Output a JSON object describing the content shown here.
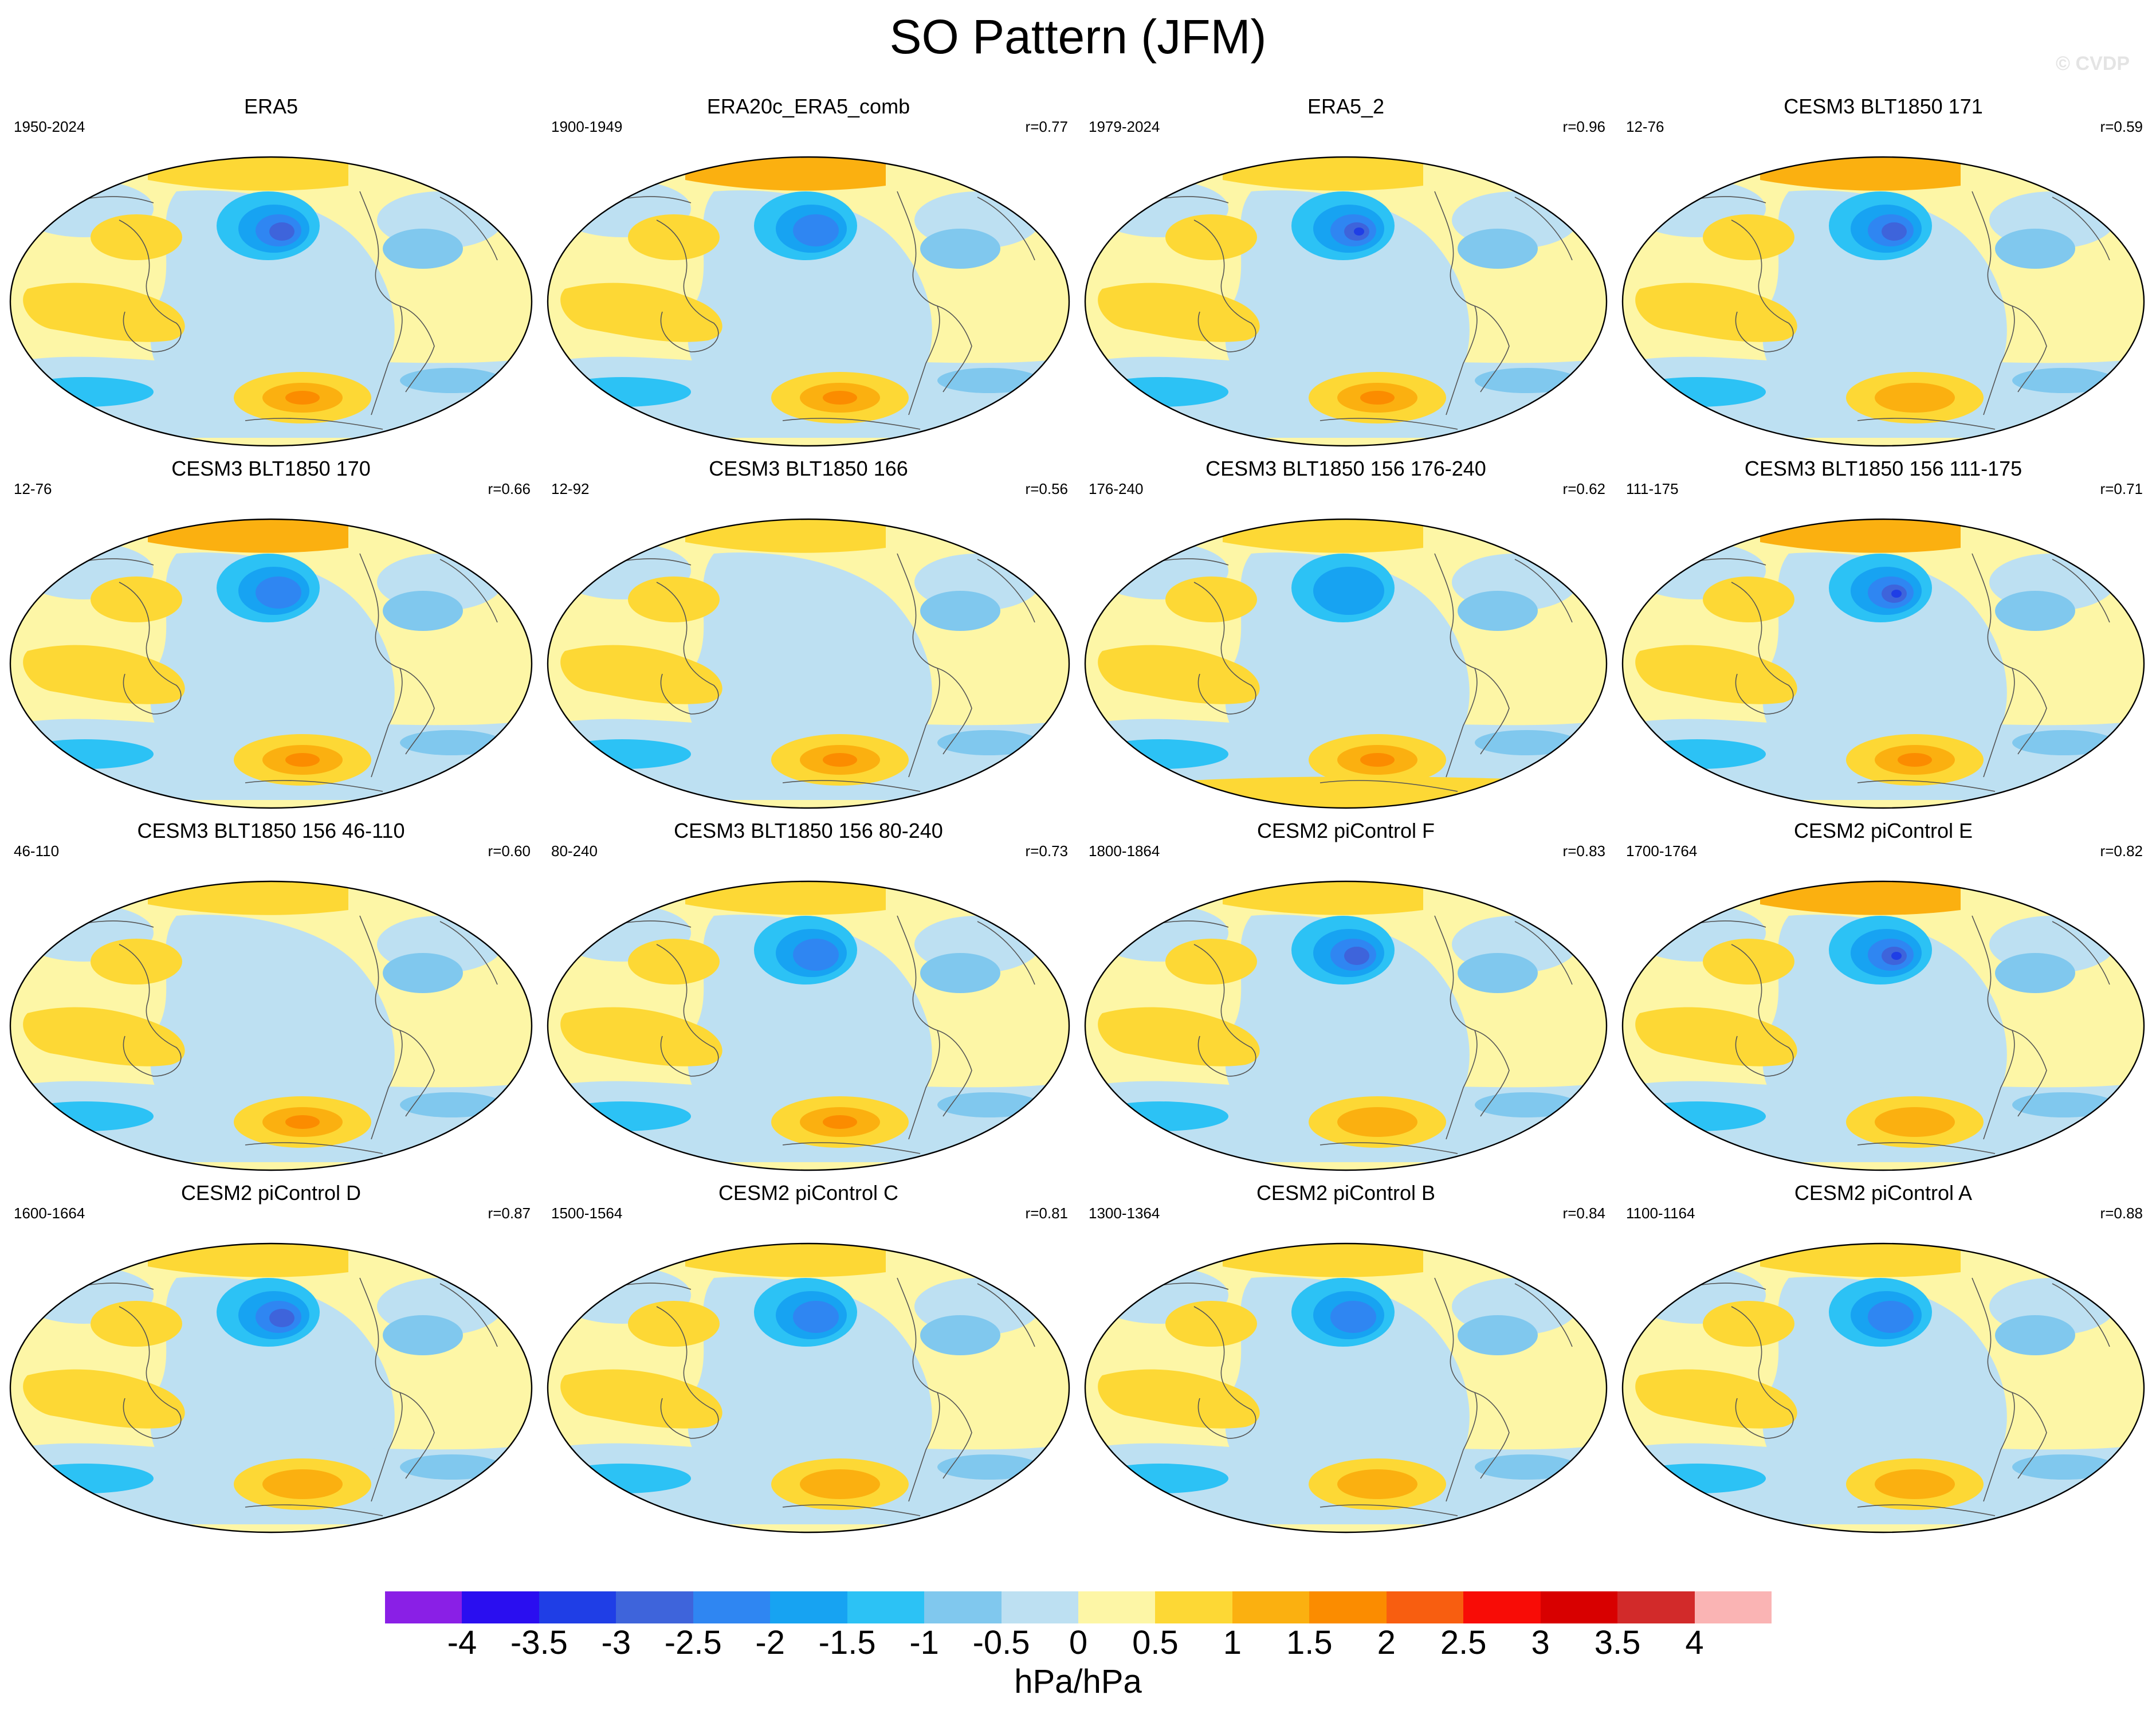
{
  "title": "SO Pattern (JFM)",
  "watermark": "© CVDP",
  "panels": [
    {
      "name": "ERA5",
      "years": "1950-2024",
      "r": ""
    },
    {
      "name": "ERA20c_ERA5_comb",
      "years": "1900-1949",
      "r": "r=0.77"
    },
    {
      "name": "ERA5_2",
      "years": "1979-2024",
      "r": "r=0.96"
    },
    {
      "name": "CESM3 BLT1850 171",
      "years": "12-76",
      "r": "r=0.59"
    },
    {
      "name": "CESM3 BLT1850 170",
      "years": "12-76",
      "r": "r=0.66"
    },
    {
      "name": "CESM3 BLT1850 166",
      "years": "12-92",
      "r": "r=0.56"
    },
    {
      "name": "CESM3 BLT1850 156 176-240",
      "years": "176-240",
      "r": "r=0.62"
    },
    {
      "name": "CESM3 BLT1850 156 111-175",
      "years": "111-175",
      "r": "r=0.71"
    },
    {
      "name": "CESM3 BLT1850 156 46-110",
      "years": "46-110",
      "r": "r=0.60"
    },
    {
      "name": "CESM3 BLT1850 156 80-240",
      "years": "80-240",
      "r": "r=0.73"
    },
    {
      "name": "CESM2 piControl F",
      "years": "1800-1864",
      "r": "r=0.83"
    },
    {
      "name": "CESM2 piControl E",
      "years": "1700-1764",
      "r": "r=0.82"
    },
    {
      "name": "CESM2 piControl D",
      "years": "1600-1664",
      "r": "r=0.87"
    },
    {
      "name": "CESM2 piControl C",
      "years": "1500-1564",
      "r": "r=0.81"
    },
    {
      "name": "CESM2 piControl B",
      "years": "1300-1364",
      "r": "r=0.84"
    },
    {
      "name": "CESM2 piControl A",
      "years": "1100-1164",
      "r": "r=0.88"
    }
  ],
  "colorbar": {
    "units": "hPa/hPa",
    "labels": [
      "-4",
      "-3.5",
      "-3",
      "-2.5",
      "-2",
      "-1.5",
      "-1",
      "-0.5",
      "0",
      "0.5",
      "1",
      "1.5",
      "2",
      "2.5",
      "3",
      "3.5",
      "4"
    ],
    "colors": [
      "#8a1fe6",
      "#2a0ef0",
      "#1f3ee6",
      "#3e64db",
      "#2f86f2",
      "#17a3f2",
      "#2cc2f5",
      "#80c8ee",
      "#bde0f2",
      "#fdf6a6",
      "#fdd835",
      "#fbb010",
      "#fb8c00",
      "#f85e10",
      "#f80c06",
      "#d80000",
      "#d22a2a",
      "#fab4b4"
    ]
  }
}
